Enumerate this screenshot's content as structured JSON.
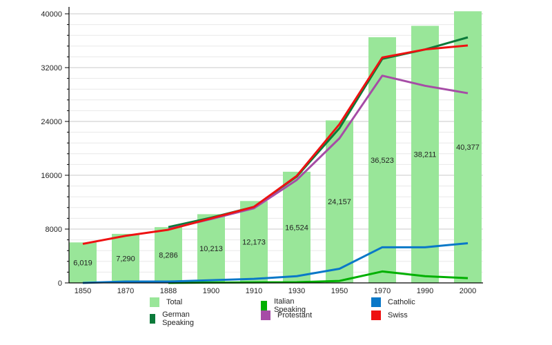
{
  "chart_data": {
    "type": "bar",
    "title": "",
    "xlabel": "",
    "ylabel": "",
    "ylim": [
      0,
      40000
    ],
    "yticks": [
      "0",
      "8000",
      "16000",
      "24000",
      "32000",
      "40000"
    ],
    "minor_tick_step": 1600,
    "grid": true,
    "legend_placement": "bottom",
    "categories": [
      "1850",
      "1870",
      "1888",
      "1900",
      "1910",
      "1930",
      "1950",
      "1970",
      "1990",
      "2000"
    ],
    "bars": {
      "name": "Total",
      "color": "#99e699",
      "values": [
        6019,
        7290,
        8286,
        10213,
        12173,
        16524,
        24157,
        36523,
        38211,
        40377
      ],
      "labels": [
        "6,019",
        "7,290",
        "8,286",
        "10,213",
        "12,173",
        "16,524",
        "24,157",
        "36,523",
        "38,211",
        "40,377"
      ]
    },
    "series": [
      {
        "name": "German Speaking",
        "type": "line",
        "color": "#0c7a3a",
        "values": [
          null,
          null,
          8300,
          9700,
          11300,
          15800,
          23000,
          33300,
          34700,
          36500
        ]
      },
      {
        "name": "Italian Speaking",
        "type": "line",
        "color": "#00b000",
        "values": [
          null,
          null,
          0,
          50,
          80,
          100,
          300,
          1700,
          1000,
          700
        ]
      },
      {
        "name": "Catholic",
        "type": "line",
        "color": "#0a78c8",
        "values": [
          0,
          200,
          200,
          400,
          600,
          1000,
          2100,
          5300,
          5300,
          5900
        ]
      },
      {
        "name": "Protestant",
        "type": "line",
        "color": "#a64ca6",
        "values": [
          null,
          null,
          8000,
          9500,
          11100,
          15300,
          21500,
          30800,
          29300,
          28200
        ]
      },
      {
        "name": "Swiss",
        "type": "line",
        "color": "#ee1111",
        "values": [
          5800,
          7000,
          7900,
          9600,
          11300,
          15900,
          23600,
          33500,
          34700,
          35300
        ]
      }
    ]
  }
}
